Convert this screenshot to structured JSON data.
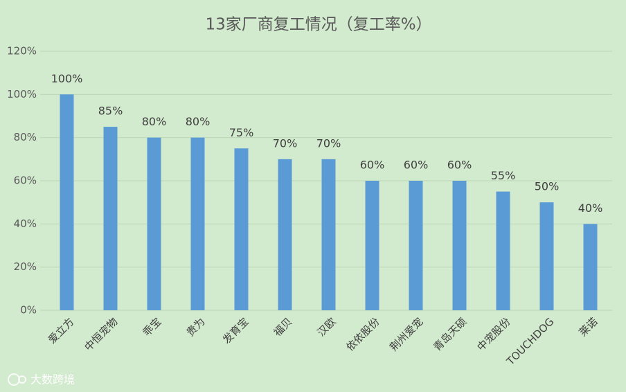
{
  "chart_data": {
    "type": "bar",
    "title": "13家厂商复工情况（复工率%）",
    "categories": [
      "爱立方",
      "中恒宠物",
      "乖宝",
      "贵为",
      "发育宝",
      "福贝",
      "汉欧",
      "依依股份",
      "荆州爱宠",
      "青岛天硕",
      "中宠股份",
      "TOUCHDOG",
      "莱诺"
    ],
    "values": [
      100,
      85,
      80,
      80,
      75,
      70,
      70,
      60,
      60,
      60,
      55,
      50,
      40
    ],
    "value_labels": [
      "100%",
      "85%",
      "80%",
      "80%",
      "75%",
      "70%",
      "70%",
      "60%",
      "60%",
      "60%",
      "55%",
      "50%",
      "40%"
    ],
    "color": "#5b9bd5",
    "ylim": [
      0,
      120
    ],
    "yticks": [
      {
        "value": 0,
        "label": "0%"
      },
      {
        "value": 20,
        "label": "20%"
      },
      {
        "value": 40,
        "label": "40%"
      },
      {
        "value": 60,
        "label": "60%"
      },
      {
        "value": 80,
        "label": "80%"
      },
      {
        "value": 100,
        "label": "100%"
      },
      {
        "value": 120,
        "label": "120%"
      }
    ],
    "grid": true
  },
  "watermark": "大数跨境"
}
